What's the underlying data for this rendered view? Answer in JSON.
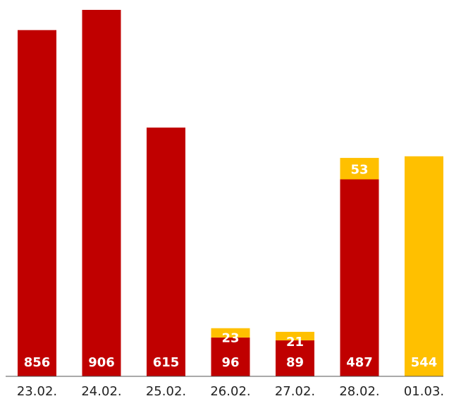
{
  "chart_data": {
    "type": "bar",
    "stacked": true,
    "categories": [
      "23.02.",
      "24.02.",
      "25.02.",
      "26.02.",
      "27.02.",
      "28.02.",
      "01.03."
    ],
    "series": [
      {
        "values": [
          856,
          906,
          615,
          96,
          89,
          487,
          0
        ],
        "color": "#c00000"
      },
      {
        "values": [
          0,
          0,
          0,
          23,
          21,
          53,
          544
        ],
        "color": "#ffc000"
      }
    ],
    "ylim": [
      0,
      906
    ],
    "grid": false,
    "legend": "none"
  },
  "colors": {
    "background": "#ffffff",
    "axis": "#555555",
    "label_text": "#ffffff",
    "tick_text": "#222222"
  }
}
